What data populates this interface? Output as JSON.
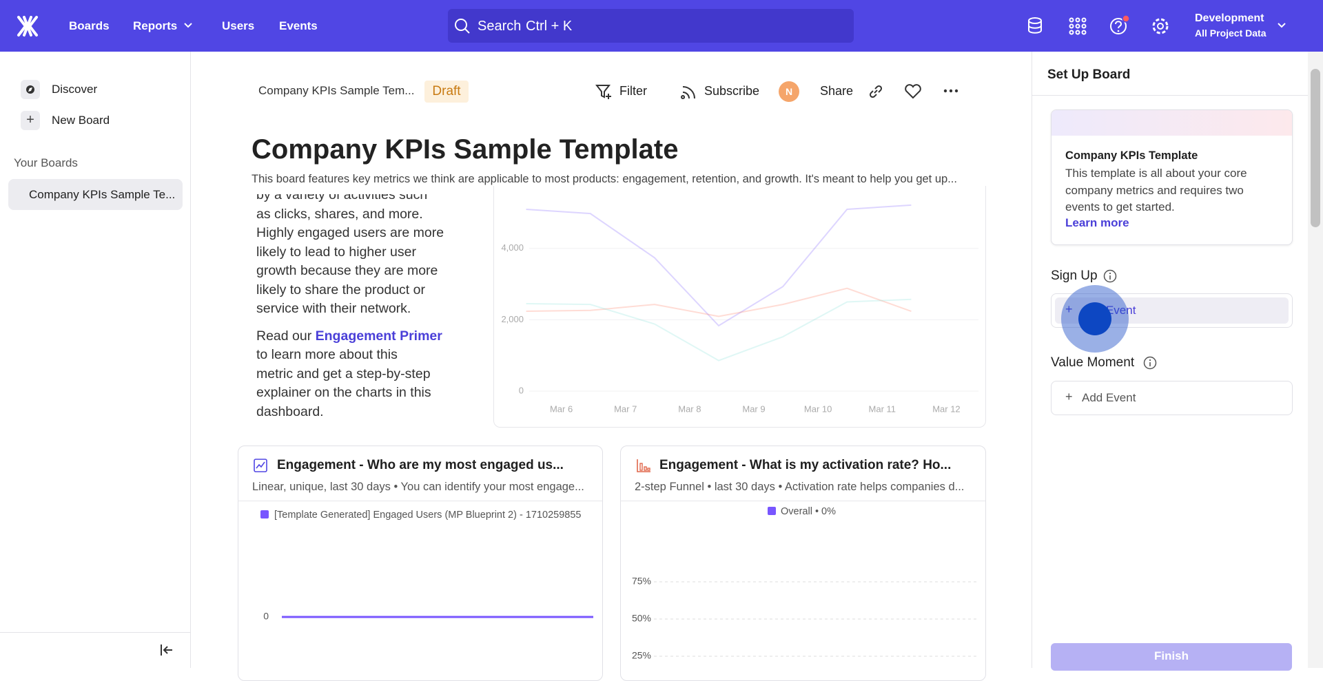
{
  "nav": {
    "items": [
      "Boards",
      "Reports",
      "Users",
      "Events"
    ],
    "search": "Search",
    "search_shortcut": "Ctrl + K",
    "project": "Development",
    "project_sub": "All Project Data"
  },
  "sidebar": {
    "discover": "Discover",
    "new_board": "New Board",
    "section": "Your Boards",
    "boards": [
      "Company KPIs Sample Te..."
    ]
  },
  "header": {
    "breadcrumb": "Company KPIs Sample Tem...",
    "badge": "Draft",
    "filter": "Filter",
    "subscribe": "Subscribe",
    "avatar": "N",
    "share": "Share",
    "title": "Company KPIs Sample Template",
    "description": "This board features key metrics we think are applicable to most products: engagement, retention, and growth. It's meant to help you get up..."
  },
  "text_card": {
    "lines": [
      "by a variety of activities such",
      "as clicks, shares, and more.",
      "Highly engaged users are more",
      "likely to lead to higher user",
      "growth because they are more",
      "likely to share the product or",
      "service with their network."
    ],
    "link_prefix": "Read our",
    "link": "Engagement Primer",
    "lines2": [
      "to learn more about this",
      "metric and get a step-by-step",
      "explainer on the charts in this",
      "dashboard."
    ]
  },
  "chart_data": [
    {
      "type": "line",
      "categories": [
        "Mar 6",
        "Mar 7",
        "Mar 8",
        "Mar 9",
        "Mar 10",
        "Mar 11",
        "Mar 12"
      ],
      "series": [
        {
          "color": "#7856ff",
          "values": [
            5095,
            4976,
            3738,
            1833,
            2929,
            5095,
            5214
          ]
        },
        {
          "color": "#ff7557",
          "values": [
            2238,
            2262,
            2429,
            2095,
            2429,
            2881,
            2238
          ]
        },
        {
          "color": "#80e1d9",
          "values": [
            2452,
            2429,
            1881,
            857,
            1524,
            2500,
            2571
          ]
        }
      ],
      "ylim": [
        0,
        5500
      ],
      "yticks": [
        0,
        {
          "value": 2000,
          "label": "2,000"
        },
        {
          "value": 4000,
          "label": "4,000"
        }
      ],
      "grid": true
    },
    {
      "type": "line",
      "title": "Engagement - Who are my most engaged us...",
      "subtitle": "Linear, unique, last 30 days • You can identify your most engage...",
      "series": [
        {
          "name": "[Template Generated] Engaged Users (MP Blueprint 2) - 1710259855",
          "color": "#7856ff",
          "values": [
            0,
            0,
            0,
            0,
            0,
            0,
            0,
            0,
            0,
            0,
            0,
            0,
            0,
            0,
            0,
            0,
            0,
            0,
            0,
            0,
            0,
            0,
            0,
            0,
            0,
            0,
            0,
            0,
            0,
            0
          ]
        }
      ],
      "ylim": [
        0,
        1
      ],
      "yticks": [
        0
      ],
      "grid": false
    },
    {
      "type": "funnel",
      "title": "Engagement - What is my activation rate? Ho...",
      "subtitle": "2-step Funnel • last 30 days • Activation rate helps companies d...",
      "legend": [
        {
          "name": "Overall • 0%",
          "color": "#7856ff"
        }
      ],
      "ylim": [
        0,
        100
      ],
      "yticks": [
        {
          "value": 75,
          "label": "75%"
        },
        {
          "value": 50,
          "label": "50%"
        },
        {
          "value": 25,
          "label": "25%"
        }
      ],
      "grid": true
    }
  ],
  "setup": {
    "title": "Set Up Board",
    "card_title": "Company KPIs Template",
    "card_lines": [
      "This template is all about your core",
      "company metrics and requires two",
      "events to get started."
    ],
    "learn_more": "Learn more",
    "sign_up": "Sign Up",
    "add_event_1": "Add Event",
    "value_moment": "Value Moment",
    "add_event_2": "Add Event",
    "finish": "Finish"
  }
}
